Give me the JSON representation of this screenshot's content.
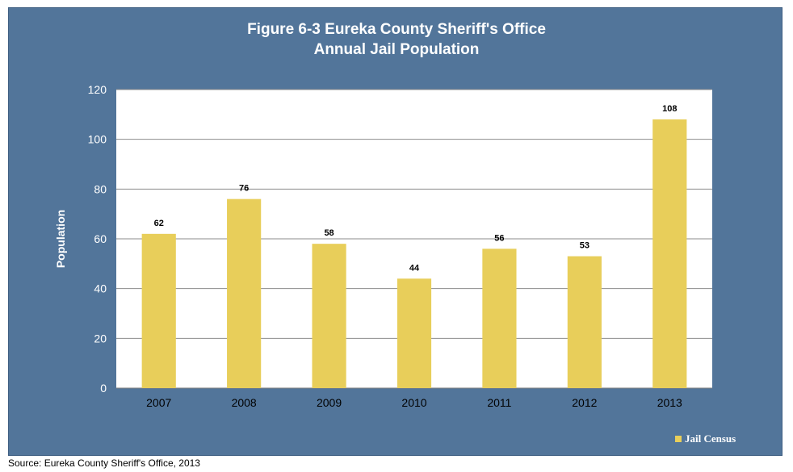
{
  "chart_data": {
    "type": "bar",
    "title_line1": "Figure 6-3 Eureka County Sheriff's Office",
    "title_line2": "Annual Jail Population",
    "xlabel": "",
    "ylabel": "Population",
    "categories": [
      "2007",
      "2008",
      "2009",
      "2010",
      "2011",
      "2012",
      "2013"
    ],
    "series": [
      {
        "name": "Jail Census",
        "values": [
          62,
          76,
          58,
          44,
          56,
          53,
          108
        ],
        "color": "#e8ce5a"
      }
    ],
    "ylim": [
      0,
      120
    ],
    "yticks": [
      0,
      20,
      40,
      60,
      80,
      100,
      120
    ],
    "grid": true,
    "legend": "bottom-right",
    "plot_background": "#ffffff",
    "frame_background": "#52759a"
  },
  "source": "Source: Eureka County Sheriff's Office, 2013"
}
